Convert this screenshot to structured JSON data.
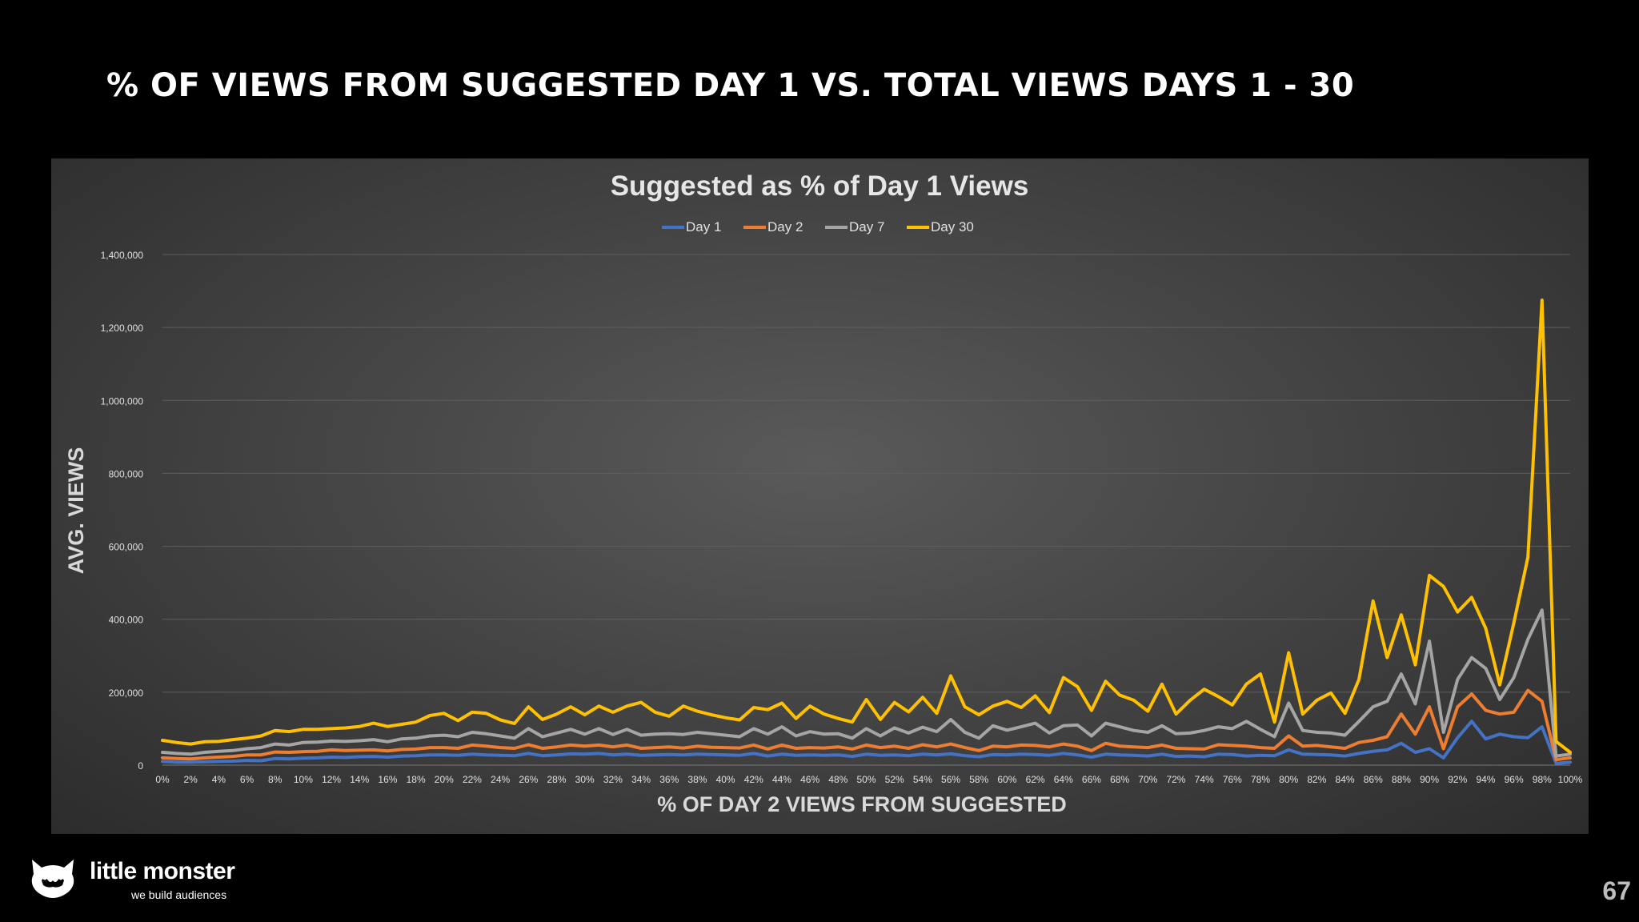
{
  "slide": {
    "title": "% OF VIEWS FROM SUGGESTED DAY 1 VS. TOTAL VIEWS DAYS 1 - 30",
    "brand_name": "little monster",
    "brand_tagline": "we build audiences",
    "page_number": "67"
  },
  "chart_data": {
    "type": "line",
    "title": "Suggested as % of Day 1 Views",
    "xlabel": "% OF DAY 2 VIEWS FROM SUGGESTED",
    "ylabel": "AVG. VIEWS",
    "legend_position": "top-center",
    "ylim": [
      0,
      1400000
    ],
    "yticks": [
      "0",
      "200,000",
      "400,000",
      "600,000",
      "800,000",
      "1,000,000",
      "1,200,000",
      "1,400,000"
    ],
    "ytick_values": [
      0,
      200000,
      400000,
      600000,
      800000,
      1000000,
      1200000,
      1400000
    ],
    "grid": true,
    "x": [
      0,
      1,
      2,
      3,
      4,
      5,
      6,
      7,
      8,
      9,
      10,
      11,
      12,
      13,
      14,
      15,
      16,
      17,
      18,
      19,
      20,
      21,
      22,
      23,
      24,
      25,
      26,
      27,
      28,
      29,
      30,
      31,
      32,
      33,
      34,
      35,
      36,
      37,
      38,
      39,
      40,
      41,
      42,
      43,
      44,
      45,
      46,
      47,
      48,
      49,
      50,
      51,
      52,
      53,
      54,
      55,
      56,
      57,
      58,
      59,
      60,
      61,
      62,
      63,
      64,
      65,
      66,
      67,
      68,
      69,
      70,
      71,
      72,
      73,
      74,
      75,
      76,
      77,
      78,
      79,
      80,
      81,
      82,
      83,
      84,
      85,
      86,
      87,
      88,
      89,
      90,
      91,
      92,
      93,
      94,
      95,
      96,
      97,
      98,
      99,
      100
    ],
    "xtick_labels": [
      "0%",
      "2%",
      "4%",
      "6%",
      "8%",
      "10%",
      "12%",
      "14%",
      "16%",
      "18%",
      "20%",
      "22%",
      "24%",
      "26%",
      "28%",
      "30%",
      "32%",
      "34%",
      "36%",
      "38%",
      "40%",
      "42%",
      "44%",
      "46%",
      "48%",
      "50%",
      "52%",
      "54%",
      "56%",
      "58%",
      "60%",
      "62%",
      "64%",
      "66%",
      "68%",
      "70%",
      "72%",
      "74%",
      "76%",
      "78%",
      "80%",
      "82%",
      "84%",
      "86%",
      "88%",
      "90%",
      "92%",
      "94%",
      "96%",
      "98%",
      "100%"
    ],
    "series": [
      {
        "name": "Day 1",
        "color": "#4472c4",
        "values": [
          10000,
          8000,
          8000,
          9000,
          10000,
          11000,
          13000,
          12000,
          18000,
          17000,
          19000,
          20000,
          22000,
          21000,
          23000,
          24000,
          22000,
          25000,
          26000,
          28000,
          28000,
          27000,
          30000,
          28000,
          27000,
          26000,
          32000,
          26000,
          28000,
          31000,
          30000,
          32000,
          28000,
          30000,
          27000,
          28000,
          29000,
          28000,
          30000,
          29000,
          28000,
          27000,
          32000,
          25000,
          30000,
          27000,
          28000,
          27000,
          28000,
          24000,
          30000,
          27000,
          28000,
          26000,
          30000,
          28000,
          31000,
          26000,
          23000,
          29000,
          28000,
          30000,
          29000,
          27000,
          32000,
          28000,
          22000,
          30000,
          28000,
          27000,
          25000,
          30000,
          24000,
          25000,
          23000,
          30000,
          29000,
          25000,
          27000,
          26000,
          42000,
          30000,
          29000,
          28000,
          25000,
          32000,
          38000,
          42000,
          60000,
          35000,
          45000,
          20000,
          75000,
          120000,
          72000,
          85000,
          78000,
          75000,
          105000,
          5000,
          8000
        ]
      },
      {
        "name": "Day 2",
        "color": "#ed7d31",
        "values": [
          20000,
          18000,
          17000,
          20000,
          22000,
          24000,
          28000,
          28000,
          36000,
          35000,
          37000,
          38000,
          42000,
          40000,
          41000,
          42000,
          39000,
          43000,
          44000,
          48000,
          48000,
          46000,
          55000,
          52000,
          48000,
          46000,
          56000,
          46000,
          50000,
          55000,
          52000,
          55000,
          50000,
          55000,
          46000,
          48000,
          50000,
          47000,
          52000,
          49000,
          48000,
          47000,
          55000,
          44000,
          55000,
          46000,
          48000,
          47000,
          50000,
          44000,
          55000,
          48000,
          52000,
          46000,
          56000,
          50000,
          58000,
          48000,
          40000,
          52000,
          50000,
          55000,
          54000,
          50000,
          58000,
          52000,
          40000,
          60000,
          52000,
          50000,
          48000,
          55000,
          46000,
          45000,
          44000,
          56000,
          54000,
          52000,
          48000,
          46000,
          80000,
          52000,
          54000,
          50000,
          46000,
          62000,
          68000,
          78000,
          140000,
          85000,
          160000,
          45000,
          160000,
          195000,
          150000,
          140000,
          145000,
          205000,
          175000,
          15000,
          20000
        ]
      },
      {
        "name": "Day 7",
        "color": "#a5a5a5",
        "values": [
          35000,
          32000,
          30000,
          35000,
          38000,
          40000,
          45000,
          48000,
          58000,
          55000,
          62000,
          63000,
          66000,
          65000,
          67000,
          70000,
          64000,
          72000,
          74000,
          80000,
          82000,
          78000,
          90000,
          86000,
          80000,
          74000,
          100000,
          78000,
          88000,
          98000,
          85000,
          100000,
          84000,
          98000,
          82000,
          85000,
          86000,
          84000,
          90000,
          86000,
          82000,
          78000,
          100000,
          85000,
          105000,
          80000,
          92000,
          85000,
          86000,
          74000,
          100000,
          80000,
          102000,
          88000,
          104000,
          92000,
          125000,
          90000,
          74000,
          108000,
          96000,
          105000,
          115000,
          88000,
          108000,
          110000,
          80000,
          115000,
          105000,
          95000,
          90000,
          108000,
          86000,
          88000,
          95000,
          105000,
          100000,
          120000,
          98000,
          78000,
          170000,
          95000,
          90000,
          88000,
          82000,
          120000,
          160000,
          175000,
          250000,
          168000,
          340000,
          90000,
          235000,
          295000,
          265000,
          180000,
          240000,
          345000,
          425000,
          25000,
          30000
        ]
      },
      {
        "name": "Day 30",
        "color": "#ffc000",
        "values": [
          68000,
          62000,
          58000,
          64000,
          65000,
          70000,
          74000,
          80000,
          95000,
          92000,
          98000,
          98000,
          100000,
          102000,
          106000,
          115000,
          106000,
          112000,
          118000,
          136000,
          142000,
          122000,
          145000,
          142000,
          124000,
          114000,
          160000,
          125000,
          140000,
          160000,
          138000,
          162000,
          145000,
          162000,
          172000,
          145000,
          134000,
          162000,
          148000,
          138000,
          130000,
          124000,
          158000,
          152000,
          170000,
          128000,
          162000,
          140000,
          128000,
          118000,
          180000,
          125000,
          172000,
          146000,
          186000,
          142000,
          245000,
          160000,
          138000,
          162000,
          175000,
          158000,
          190000,
          144000,
          240000,
          215000,
          150000,
          230000,
          192000,
          178000,
          148000,
          222000,
          140000,
          178000,
          208000,
          188000,
          165000,
          222000,
          250000,
          118000,
          308000,
          140000,
          178000,
          198000,
          142000,
          235000,
          450000,
          295000,
          412000,
          275000,
          520000,
          490000,
          420000,
          460000,
          375000,
          220000,
          390000,
          570000,
          1275000,
          65000,
          35000
        ]
      }
    ]
  }
}
